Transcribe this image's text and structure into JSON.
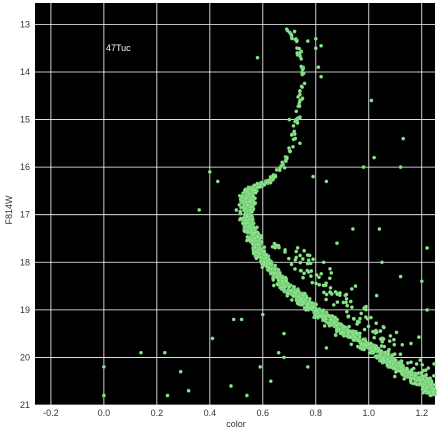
{
  "chart_data": {
    "type": "scatter",
    "title": "",
    "xlabel": "color",
    "ylabel": "F814W",
    "annotation": "47Tuc",
    "xlim": [
      -0.26,
      1.25
    ],
    "ylim": [
      21,
      12.55
    ],
    "y_inverted": true,
    "x_ticks": [
      "-0.2",
      "0.0",
      "0.2",
      "0.4",
      "0.6",
      "0.8",
      "1.0",
      "1.2"
    ],
    "y_ticks": [
      "13",
      "14",
      "15",
      "16",
      "17",
      "18",
      "19",
      "20",
      "21"
    ],
    "grid": true,
    "background": "#000000",
    "grid_color": "#ffffff",
    "marker_color": "#8ee68e",
    "marker_edge_color": "#5fae5f",
    "series": [
      {
        "sequence_ridge": [
          [
            0.69,
            13.1
          ],
          [
            0.73,
            13.4
          ],
          [
            0.75,
            13.8
          ],
          [
            0.75,
            14.2
          ],
          [
            0.74,
            14.6
          ],
          [
            0.73,
            15.0
          ],
          [
            0.71,
            15.4
          ],
          [
            0.69,
            15.8
          ],
          [
            0.66,
            16.1
          ],
          [
            0.62,
            16.3
          ],
          [
            0.56,
            16.45
          ],
          [
            0.54,
            16.7
          ],
          [
            0.54,
            17.0
          ],
          [
            0.55,
            17.3
          ],
          [
            0.57,
            17.6
          ],
          [
            0.6,
            17.9
          ],
          [
            0.64,
            18.2
          ],
          [
            0.69,
            18.5
          ],
          [
            0.75,
            18.8
          ],
          [
            0.82,
            19.1
          ],
          [
            0.9,
            19.4
          ],
          [
            0.98,
            19.7
          ],
          [
            1.06,
            20.0
          ],
          [
            1.14,
            20.3
          ],
          [
            1.22,
            20.6
          ],
          [
            1.26,
            20.8
          ]
        ],
        "outliers": [
          [
            0.69,
            13.1
          ],
          [
            0.72,
            13.15
          ],
          [
            0.77,
            13.35
          ],
          [
            0.8,
            13.5
          ],
          [
            0.8,
            13.3
          ],
          [
            0.82,
            13.45
          ],
          [
            0.58,
            13.7
          ],
          [
            0.81,
            13.9
          ],
          [
            0.82,
            14.1
          ],
          [
            1.01,
            14.6
          ],
          [
            0.7,
            15.0
          ],
          [
            1.13,
            15.4
          ],
          [
            0.74,
            15.5
          ],
          [
            1.02,
            15.8
          ],
          [
            0.98,
            16.0
          ],
          [
            0.4,
            16.1
          ],
          [
            1.12,
            16.0
          ],
          [
            0.43,
            16.3
          ],
          [
            0.79,
            16.2
          ],
          [
            0.84,
            16.3
          ],
          [
            0.36,
            16.9
          ],
          [
            0.94,
            17.3
          ],
          [
            1.04,
            17.3
          ],
          [
            0.88,
            17.6
          ],
          [
            1.22,
            17.7
          ],
          [
            1.05,
            18.0
          ],
          [
            0.83,
            18.0
          ],
          [
            1.12,
            18.3
          ],
          [
            0.95,
            18.5
          ],
          [
            1.2,
            18.4
          ],
          [
            1.03,
            18.7
          ],
          [
            1.22,
            19.0
          ],
          [
            0.52,
            19.2
          ],
          [
            0.41,
            19.6
          ],
          [
            0.49,
            19.2
          ],
          [
            0.68,
            19.5
          ],
          [
            0.84,
            19.8
          ],
          [
            0.68,
            20.0
          ],
          [
            0.14,
            19.9
          ],
          [
            0.23,
            19.9
          ],
          [
            0.0,
            20.2
          ],
          [
            0.29,
            20.3
          ],
          [
            0.24,
            20.8
          ],
          [
            0.32,
            20.7
          ],
          [
            0.48,
            20.6
          ],
          [
            0.54,
            20.8
          ],
          [
            0.63,
            20.5
          ],
          [
            0.59,
            20.2
          ],
          [
            0.0,
            20.8
          ],
          [
            0.77,
            20.2
          ],
          [
            0.6,
            19.1
          ],
          [
            0.66,
            19.9
          ]
        ]
      }
    ]
  }
}
